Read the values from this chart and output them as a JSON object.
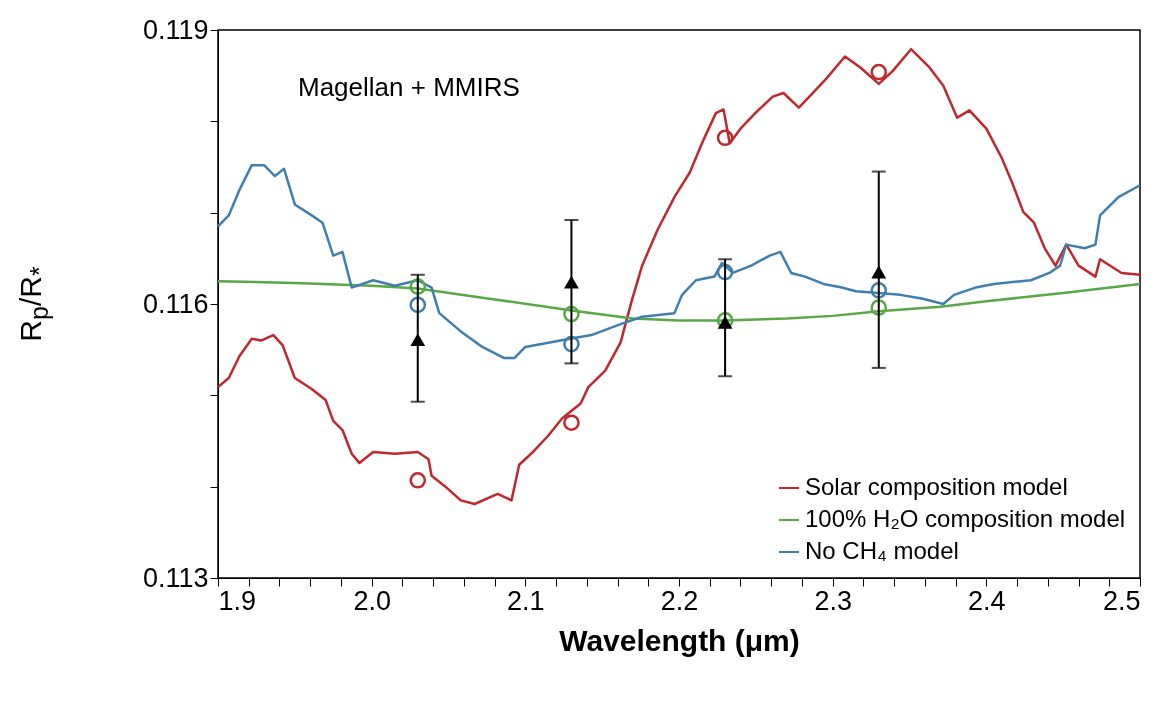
{
  "chart_data": {
    "type": "line",
    "xlabel": "Wavelength (μm)",
    "ylabel": "R$_{p}$/R$_{*}$",
    "annotations": [
      "Magellan + MMIRS"
    ],
    "legend": "bottom right",
    "grid": false,
    "xlim": [
      1.9,
      2.5
    ],
    "ylim": [
      0.113,
      0.119
    ],
    "xticks": [
      {
        "value": 1.9,
        "label": "1.9"
      },
      {
        "value": 1.92,
        "label": null
      },
      {
        "value": 1.94,
        "label": null
      },
      {
        "value": 1.96,
        "label": null
      },
      {
        "value": 1.98,
        "label": null
      },
      {
        "value": 2.0,
        "label": "2.0"
      },
      {
        "value": 2.02,
        "label": null
      },
      {
        "value": 2.04,
        "label": null
      },
      {
        "value": 2.06,
        "label": null
      },
      {
        "value": 2.08,
        "label": null
      },
      {
        "value": 2.1,
        "label": "2.1"
      },
      {
        "value": 2.12,
        "label": null
      },
      {
        "value": 2.14,
        "label": null
      },
      {
        "value": 2.16,
        "label": null
      },
      {
        "value": 2.18,
        "label": null
      },
      {
        "value": 2.2,
        "label": "2.2"
      },
      {
        "value": 2.22,
        "label": null
      },
      {
        "value": 2.24,
        "label": null
      },
      {
        "value": 2.26,
        "label": null
      },
      {
        "value": 2.28,
        "label": null
      },
      {
        "value": 2.3,
        "label": "2.3"
      },
      {
        "value": 2.32,
        "label": null
      },
      {
        "value": 2.34,
        "label": null
      },
      {
        "value": 2.36,
        "label": null
      },
      {
        "value": 2.38,
        "label": null
      },
      {
        "value": 2.4,
        "label": "2.4"
      },
      {
        "value": 2.42,
        "label": null
      },
      {
        "value": 2.44,
        "label": null
      },
      {
        "value": 2.46,
        "label": null
      },
      {
        "value": 2.48,
        "label": null
      },
      {
        "value": 2.5,
        "label": "2.5"
      }
    ],
    "yticks": [
      0.113,
      {
        "value": 0.114,
        "label": null
      },
      {
        "value": 0.115,
        "label": null
      },
      0.116,
      {
        "value": 0.117,
        "label": null
      },
      {
        "value": 0.118,
        "label": null
      },
      0.119
    ],
    "series": [
      {
        "name": "Solar composition model",
        "color": "#c0282e",
        "x": [
          1.9,
          1.907,
          1.914,
          1.922,
          1.928,
          1.936,
          1.942,
          1.95,
          1.961,
          1.97,
          1.975,
          1.981,
          1.987,
          1.992,
          2.001,
          2.015,
          2.03,
          2.037,
          2.039,
          2.048,
          2.058,
          2.067,
          2.082,
          2.091,
          2.096,
          2.105,
          2.115,
          2.124,
          2.136,
          2.141,
          2.152,
          2.162,
          2.169,
          2.176,
          2.186,
          2.197,
          2.207,
          2.216,
          2.224,
          2.229,
          2.233,
          2.24,
          2.249,
          2.261,
          2.268,
          2.278,
          2.287,
          2.296,
          2.308,
          2.318,
          2.33,
          2.339,
          2.351,
          2.363,
          2.372,
          2.381,
          2.389,
          2.4,
          2.41,
          2.417,
          2.424,
          2.431,
          2.438,
          2.445,
          2.452,
          2.46,
          2.471,
          2.474,
          2.488,
          2.5
        ],
        "values": [
          0.11509,
          0.11519,
          0.11543,
          0.11562,
          0.1156,
          0.11566,
          0.11555,
          0.11519,
          0.11507,
          0.11495,
          0.11472,
          0.11462,
          0.11436,
          0.11426,
          0.11438,
          0.11436,
          0.11438,
          0.1143,
          0.11412,
          0.114,
          0.11385,
          0.11381,
          0.11392,
          0.11385,
          0.11424,
          0.11438,
          0.11456,
          0.11475,
          0.11491,
          0.11509,
          0.11527,
          0.11558,
          0.11602,
          0.11642,
          0.11681,
          0.11717,
          0.11744,
          0.1178,
          0.11809,
          0.11813,
          0.11776,
          0.11792,
          0.11808,
          0.11827,
          0.11831,
          0.11815,
          0.11831,
          0.11847,
          0.11871,
          0.11859,
          0.11841,
          0.11855,
          0.11879,
          0.11859,
          0.11839,
          0.11804,
          0.11812,
          0.11792,
          0.1176,
          0.11732,
          0.11701,
          0.11689,
          0.11661,
          0.11642,
          0.11665,
          0.11642,
          0.1163,
          0.11649,
          0.11634,
          0.11632
        ]
      },
      {
        "name": "100% H₂O composition model",
        "color": "#58a845",
        "x": [
          1.9,
          1.95,
          2.0,
          2.03,
          2.08,
          2.13,
          2.17,
          2.2,
          2.23,
          2.27,
          2.3,
          2.33,
          2.37,
          2.4,
          2.45,
          2.5
        ],
        "values": [
          0.11625,
          0.11623,
          0.1162,
          0.11617,
          0.11605,
          0.11593,
          0.11584,
          0.11582,
          0.11582,
          0.11584,
          0.11587,
          0.11592,
          0.11597,
          0.11603,
          0.11612,
          0.11622
        ]
      },
      {
        "name": "No CH₄ model",
        "color": "#3f7fb0",
        "x": [
          1.9,
          1.907,
          1.914,
          1.922,
          1.93,
          1.937,
          1.943,
          1.95,
          1.961,
          1.968,
          1.975,
          1.981,
          1.987,
          2.001,
          2.015,
          2.03,
          2.039,
          2.044,
          2.058,
          2.072,
          2.086,
          2.093,
          2.1,
          2.129,
          2.143,
          2.162,
          2.176,
          2.197,
          2.202,
          2.211,
          2.223,
          2.228,
          2.235,
          2.247,
          2.259,
          2.266,
          2.273,
          2.282,
          2.294,
          2.306,
          2.315,
          2.33,
          2.344,
          2.358,
          2.372,
          2.379,
          2.393,
          2.405,
          2.417,
          2.429,
          2.441,
          2.448,
          2.452,
          2.464,
          2.471,
          2.474,
          2.486,
          2.5
        ],
        "values": [
          0.11685,
          0.11697,
          0.11725,
          0.11752,
          0.11752,
          0.1174,
          0.11748,
          0.11709,
          0.11697,
          0.11689,
          0.11653,
          0.11657,
          0.11618,
          0.11626,
          0.1162,
          0.11626,
          0.11618,
          0.1159,
          0.1157,
          0.11553,
          0.11541,
          0.11541,
          0.11553,
          0.11562,
          0.11566,
          0.11578,
          0.11586,
          0.1159,
          0.1161,
          0.11626,
          0.1163,
          0.11645,
          0.11634,
          0.11642,
          0.11653,
          0.11657,
          0.11634,
          0.1163,
          0.11622,
          0.11618,
          0.11614,
          0.11612,
          0.1161,
          0.11606,
          0.116,
          0.1161,
          0.11618,
          0.11622,
          0.11624,
          0.11626,
          0.11634,
          0.11642,
          0.11665,
          0.11661,
          0.11665,
          0.11697,
          0.11717,
          0.1173
        ]
      },
      {
        "type": "scatter",
        "marker": "circle",
        "color": "#c0282e",
        "x": [
          2.03,
          2.13,
          2.23,
          2.33
        ],
        "values": [
          0.11407,
          0.1147,
          0.11782,
          0.11854
        ]
      },
      {
        "type": "scatter",
        "marker": "circle",
        "color": "#58a845",
        "x": [
          2.03,
          2.13,
          2.23,
          2.33
        ],
        "values": [
          0.11619,
          0.11589,
          0.11582,
          0.11596
        ]
      },
      {
        "type": "scatter",
        "marker": "circle",
        "color": "#3f7fb0",
        "x": [
          2.03,
          2.13,
          2.23,
          2.33
        ],
        "values": [
          0.11599,
          0.11556,
          0.11635,
          0.11615
        ]
      },
      {
        "type": "scatter",
        "marker": "triangle",
        "color": "#000000",
        "x": [
          2.03,
          2.13,
          2.23,
          2.33
        ],
        "values": [
          0.11561,
          0.11624,
          0.1158,
          0.11635
        ],
        "errors": [
          [
            0.11493,
            0.11632
          ],
          [
            0.11535,
            0.11692
          ],
          [
            0.11521,
            0.11649
          ],
          [
            0.1153,
            0.11745
          ]
        ]
      }
    ]
  }
}
